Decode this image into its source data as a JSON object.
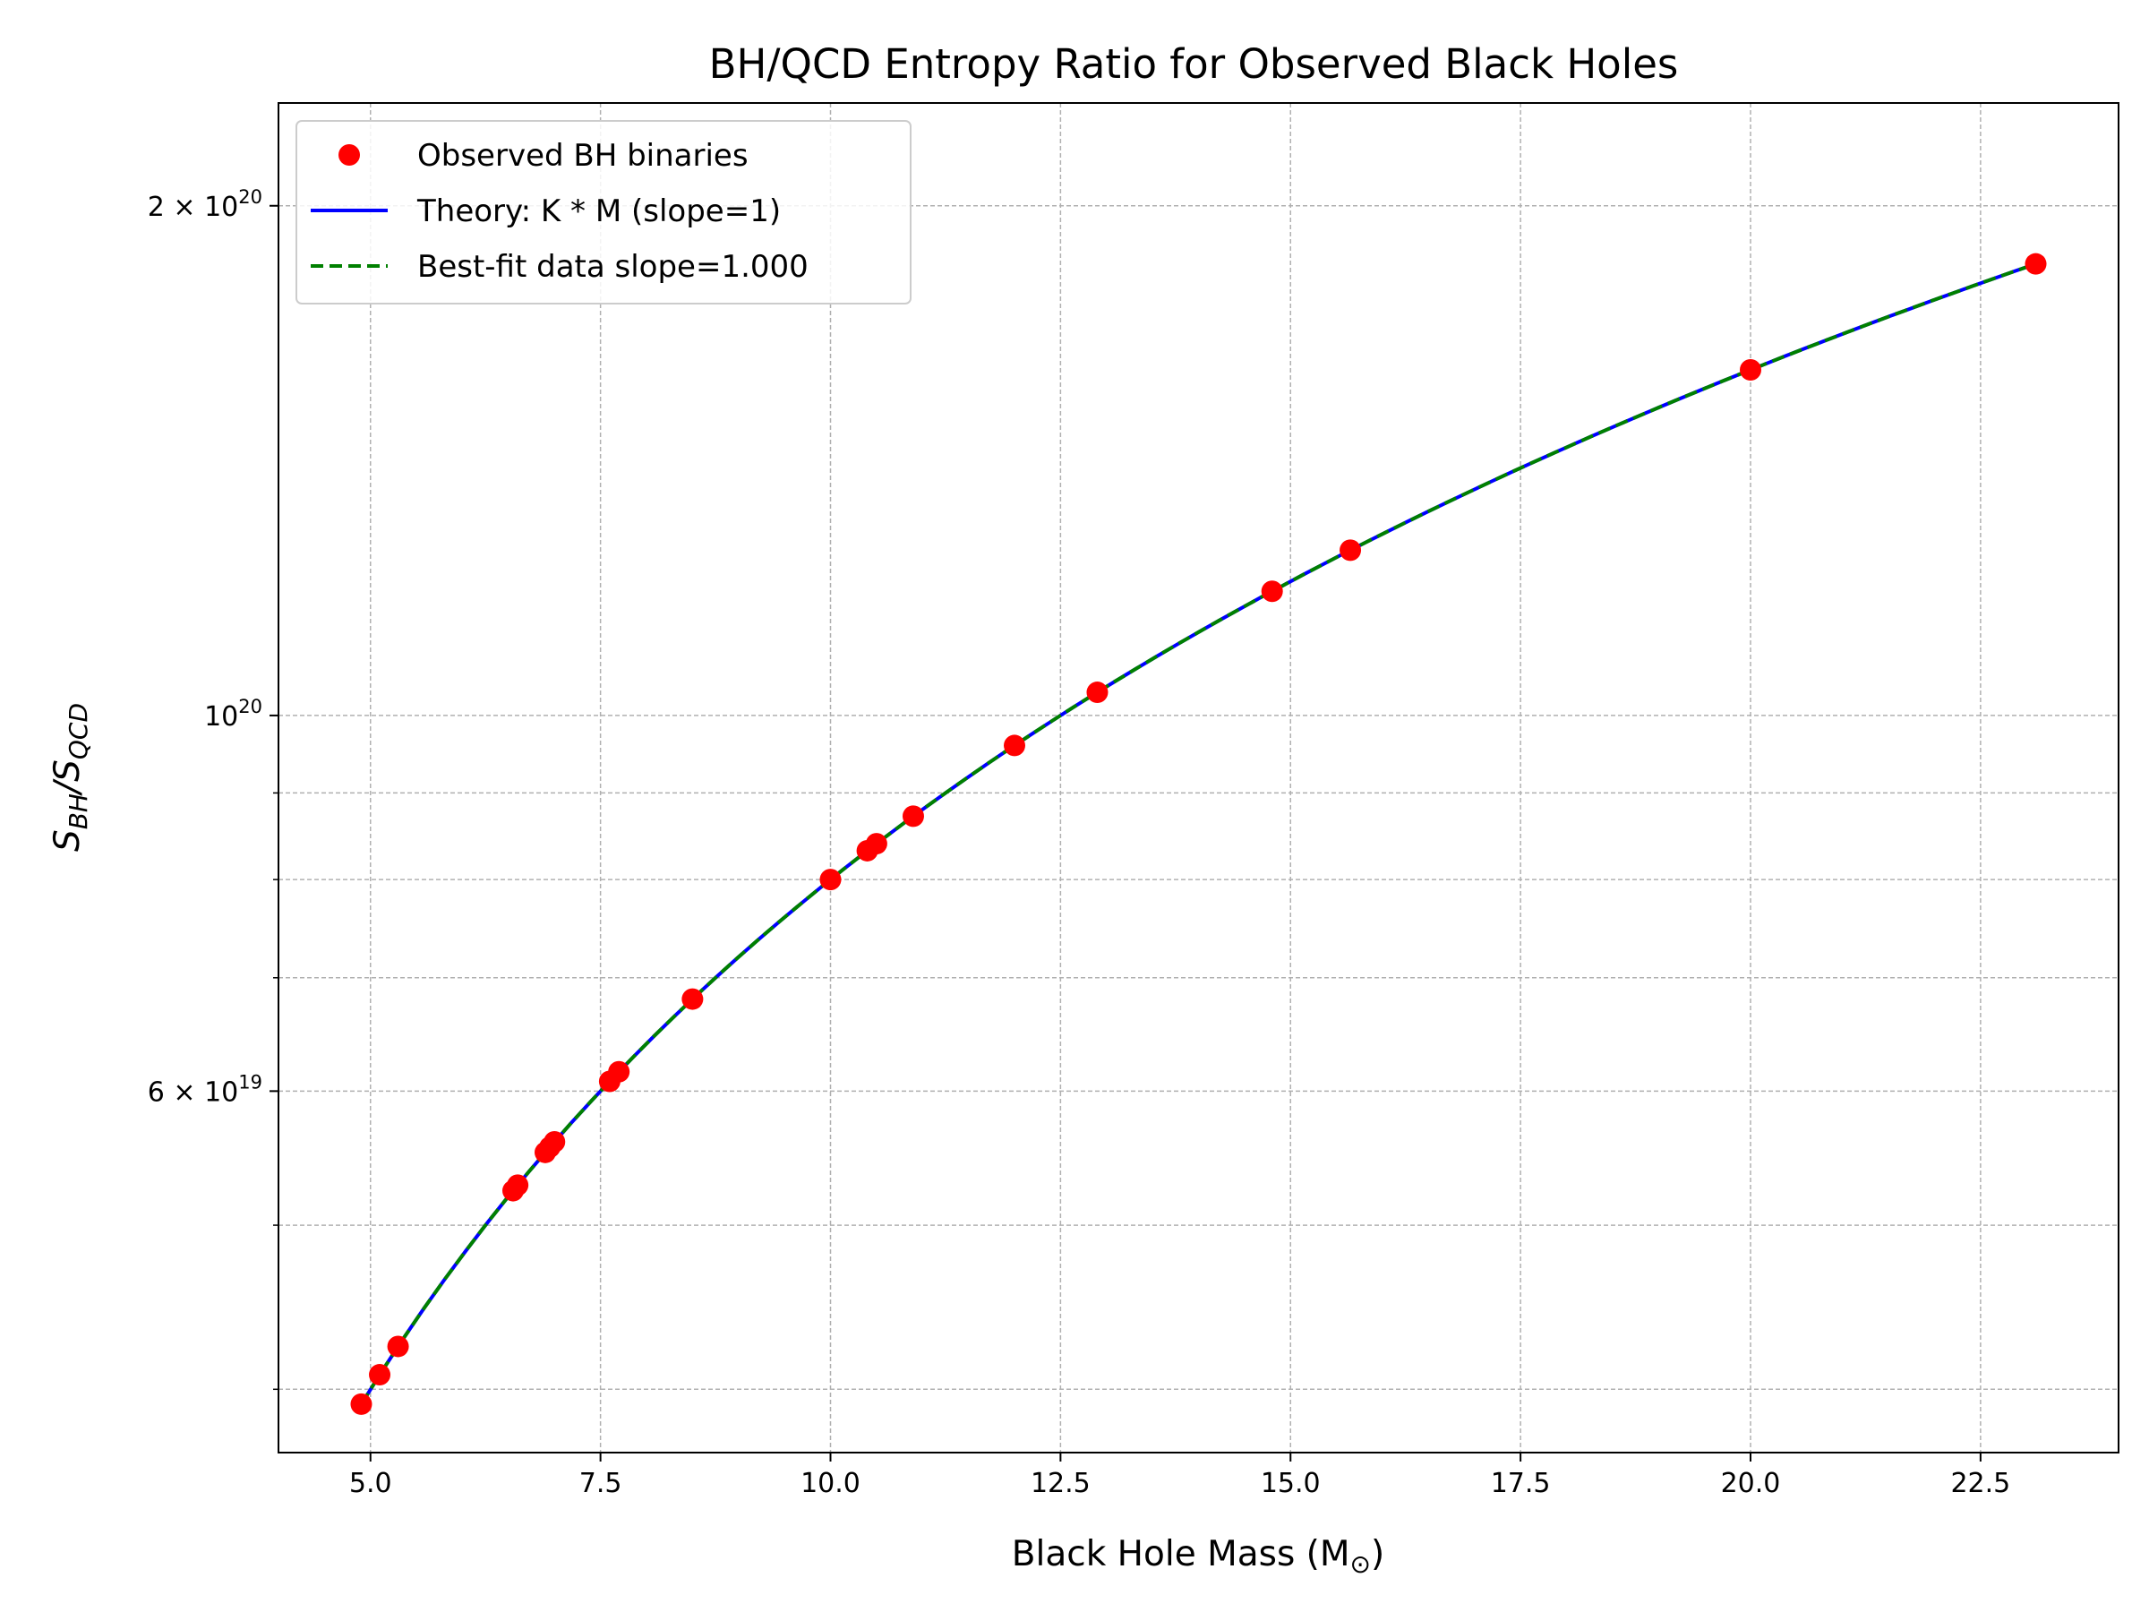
{
  "chart_data": {
    "type": "scatter",
    "title": "BH/QCD Entropy Ratio for Observed Black Holes",
    "xlabel": "Black Hole Mass (M",
    "xlabel_sub": "⊙",
    "xlabel_close": ")",
    "ylabel_main_1": "S",
    "ylabel_sub_1": "BH",
    "ylabel_slash": "/S",
    "ylabel_sub_2": "QCD",
    "y_scale": "log",
    "xlim": [
      4.0,
      24.0
    ],
    "ylim": [
      3.67e+19,
      2.3e+20
    ],
    "grid": true,
    "grid_style": "dashed",
    "legend_position": "upper-left",
    "x_ticks": [
      {
        "value": 5.0,
        "label": "5.0"
      },
      {
        "value": 7.5,
        "label": "7.5"
      },
      {
        "value": 10.0,
        "label": "10.0"
      },
      {
        "value": 12.5,
        "label": "12.5"
      },
      {
        "value": 15.0,
        "label": "15.0"
      },
      {
        "value": 17.5,
        "label": "17.5"
      },
      {
        "value": 20.0,
        "label": "20.0"
      },
      {
        "value": 22.5,
        "label": "22.5"
      }
    ],
    "y_major_ticks": [
      {
        "value": 1e+20,
        "base": "10",
        "exp": "20",
        "mant": ""
      },
      {
        "value": 2e+20,
        "base": "10",
        "exp": "20",
        "mant": "2 × "
      },
      {
        "value": 6e+19,
        "base": "10",
        "exp": "19",
        "mant": "6 × "
      }
    ],
    "y_minor_ticks": [
      4e+19,
      5e+19,
      7e+19,
      8e+19,
      9e+19
    ],
    "series": [
      {
        "name": "Observed BH binaries",
        "kind": "scatter",
        "color": "#ff0000",
        "x": [
          4.9,
          5.1,
          5.3,
          6.55,
          6.6,
          6.9,
          6.95,
          7.0,
          7.6,
          7.7,
          8.5,
          10.0,
          10.4,
          10.5,
          10.9,
          12.0,
          12.9,
          14.8,
          15.65,
          20.0,
          23.1
        ],
        "y": [
          3.92e+19,
          4.08e+19,
          4.24e+19,
          5.24e+19,
          5.28e+19,
          5.52e+19,
          5.56e+19,
          5.6e+19,
          6.08e+19,
          6.16e+19,
          6.8e+19,
          8e+19,
          8.32e+19,
          8.4e+19,
          8.72e+19,
          9.6e+19,
          1.032e+20,
          1.184e+20,
          1.252e+20,
          1.6e+20,
          1.848e+20
        ]
      },
      {
        "name": "Theory: K * M (slope=1)",
        "kind": "line",
        "color": "#0000ff",
        "style": "solid",
        "x_range": [
          4.9,
          23.1
        ],
        "k": 8e+18
      },
      {
        "name": "Best-fit data slope=1.000",
        "kind": "line",
        "color": "#008000",
        "style": "dashed",
        "x_range": [
          4.9,
          23.1
        ],
        "k": 8e+18
      }
    ]
  }
}
